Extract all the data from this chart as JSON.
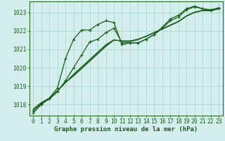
{
  "title": "Graphe pression niveau de la mer (hPa)",
  "bg_color": "#d4eeed",
  "grid_color": "#aed4d0",
  "line_color": "#1a5c1a",
  "xlim": [
    -0.5,
    23.5
  ],
  "ylim": [
    1017.4,
    1023.6
  ],
  "yticks": [
    1018,
    1019,
    1020,
    1021,
    1022,
    1023
  ],
  "xticks": [
    0,
    1,
    2,
    3,
    4,
    5,
    6,
    7,
    8,
    9,
    10,
    11,
    12,
    13,
    14,
    15,
    16,
    17,
    18,
    19,
    20,
    21,
    22,
    23
  ],
  "series": [
    {
      "y": [
        1017.75,
        1018.1,
        1018.35,
        1018.75,
        1019.2,
        1019.55,
        1019.95,
        1020.35,
        1020.75,
        1021.15,
        1021.5,
        1021.45,
        1021.45,
        1021.55,
        1021.7,
        1021.9,
        1022.1,
        1022.3,
        1022.5,
        1022.8,
        1023.0,
        1023.1,
        1023.1,
        1023.2
      ],
      "marker": false,
      "lw": 0.8
    },
    {
      "y": [
        1017.75,
        1018.1,
        1018.35,
        1018.75,
        1019.2,
        1019.6,
        1020.0,
        1020.4,
        1020.8,
        1021.2,
        1021.5,
        1021.45,
        1021.45,
        1021.55,
        1021.7,
        1021.9,
        1022.1,
        1022.3,
        1022.5,
        1022.8,
        1023.0,
        1023.1,
        1023.1,
        1023.2
      ],
      "marker": false,
      "lw": 0.8
    },
    {
      "y": [
        1017.75,
        1018.1,
        1018.35,
        1018.75,
        1019.2,
        1019.65,
        1020.05,
        1020.45,
        1020.85,
        1021.25,
        1021.52,
        1021.42,
        1021.42,
        1021.52,
        1021.72,
        1021.92,
        1022.12,
        1022.32,
        1022.52,
        1022.82,
        1023.02,
        1023.12,
        1023.12,
        1023.22
      ],
      "marker": false,
      "lw": 0.8
    },
    {
      "y": [
        1017.65,
        1018.05,
        1018.3,
        1018.7,
        1019.3,
        1020.0,
        1020.7,
        1021.4,
        1021.55,
        1021.9,
        1022.15,
        1021.35,
        1021.35,
        1021.35,
        1021.55,
        1021.8,
        1022.15,
        1022.55,
        1022.75,
        1023.15,
        1023.3,
        1023.2,
        1023.1,
        1023.2
      ],
      "marker": true,
      "lw": 0.9
    },
    {
      "y": [
        1017.55,
        1018.0,
        1018.35,
        1018.9,
        1020.5,
        1021.55,
        1022.05,
        1022.05,
        1022.35,
        1022.55,
        1022.45,
        1021.25,
        1021.35,
        1021.35,
        1021.55,
        1021.8,
        1022.2,
        1022.65,
        1022.85,
        1023.2,
        1023.35,
        1023.2,
        1023.15,
        1023.25
      ],
      "marker": true,
      "lw": 0.9
    }
  ],
  "font_color": "#1a5c1a",
  "font_size_label": 6.5,
  "font_size_tick": 5.8,
  "tick_fontfamily": "monospace",
  "label_fontfamily": "monospace"
}
